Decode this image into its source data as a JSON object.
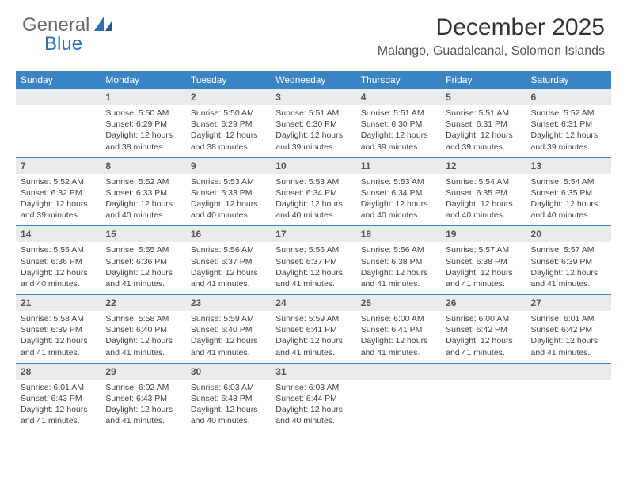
{
  "logo": {
    "text_grey": "General",
    "text_blue": "Blue"
  },
  "header": {
    "title": "December 2025",
    "location": "Malango, Guadalcanal, Solomon Islands"
  },
  "colors": {
    "header_bg": "#3b84c4",
    "header_text": "#ffffff",
    "daynum_bg": "#e9ebec",
    "cell_border": "#3b84c4",
    "title_color": "#333333",
    "body_text": "#444444"
  },
  "weekdays": [
    "Sunday",
    "Monday",
    "Tuesday",
    "Wednesday",
    "Thursday",
    "Friday",
    "Saturday"
  ],
  "weeks": [
    [
      {
        "n": "",
        "lines": []
      },
      {
        "n": "1",
        "lines": [
          "Sunrise: 5:50 AM",
          "Sunset: 6:29 PM",
          "Daylight: 12 hours",
          "and 38 minutes."
        ]
      },
      {
        "n": "2",
        "lines": [
          "Sunrise: 5:50 AM",
          "Sunset: 6:29 PM",
          "Daylight: 12 hours",
          "and 38 minutes."
        ]
      },
      {
        "n": "3",
        "lines": [
          "Sunrise: 5:51 AM",
          "Sunset: 6:30 PM",
          "Daylight: 12 hours",
          "and 39 minutes."
        ]
      },
      {
        "n": "4",
        "lines": [
          "Sunrise: 5:51 AM",
          "Sunset: 6:30 PM",
          "Daylight: 12 hours",
          "and 39 minutes."
        ]
      },
      {
        "n": "5",
        "lines": [
          "Sunrise: 5:51 AM",
          "Sunset: 6:31 PM",
          "Daylight: 12 hours",
          "and 39 minutes."
        ]
      },
      {
        "n": "6",
        "lines": [
          "Sunrise: 5:52 AM",
          "Sunset: 6:31 PM",
          "Daylight: 12 hours",
          "and 39 minutes."
        ]
      }
    ],
    [
      {
        "n": "7",
        "lines": [
          "Sunrise: 5:52 AM",
          "Sunset: 6:32 PM",
          "Daylight: 12 hours",
          "and 39 minutes."
        ]
      },
      {
        "n": "8",
        "lines": [
          "Sunrise: 5:52 AM",
          "Sunset: 6:33 PM",
          "Daylight: 12 hours",
          "and 40 minutes."
        ]
      },
      {
        "n": "9",
        "lines": [
          "Sunrise: 5:53 AM",
          "Sunset: 6:33 PM",
          "Daylight: 12 hours",
          "and 40 minutes."
        ]
      },
      {
        "n": "10",
        "lines": [
          "Sunrise: 5:53 AM",
          "Sunset: 6:34 PM",
          "Daylight: 12 hours",
          "and 40 minutes."
        ]
      },
      {
        "n": "11",
        "lines": [
          "Sunrise: 5:53 AM",
          "Sunset: 6:34 PM",
          "Daylight: 12 hours",
          "and 40 minutes."
        ]
      },
      {
        "n": "12",
        "lines": [
          "Sunrise: 5:54 AM",
          "Sunset: 6:35 PM",
          "Daylight: 12 hours",
          "and 40 minutes."
        ]
      },
      {
        "n": "13",
        "lines": [
          "Sunrise: 5:54 AM",
          "Sunset: 6:35 PM",
          "Daylight: 12 hours",
          "and 40 minutes."
        ]
      }
    ],
    [
      {
        "n": "14",
        "lines": [
          "Sunrise: 5:55 AM",
          "Sunset: 6:36 PM",
          "Daylight: 12 hours",
          "and 40 minutes."
        ]
      },
      {
        "n": "15",
        "lines": [
          "Sunrise: 5:55 AM",
          "Sunset: 6:36 PM",
          "Daylight: 12 hours",
          "and 41 minutes."
        ]
      },
      {
        "n": "16",
        "lines": [
          "Sunrise: 5:56 AM",
          "Sunset: 6:37 PM",
          "Daylight: 12 hours",
          "and 41 minutes."
        ]
      },
      {
        "n": "17",
        "lines": [
          "Sunrise: 5:56 AM",
          "Sunset: 6:37 PM",
          "Daylight: 12 hours",
          "and 41 minutes."
        ]
      },
      {
        "n": "18",
        "lines": [
          "Sunrise: 5:56 AM",
          "Sunset: 6:38 PM",
          "Daylight: 12 hours",
          "and 41 minutes."
        ]
      },
      {
        "n": "19",
        "lines": [
          "Sunrise: 5:57 AM",
          "Sunset: 6:38 PM",
          "Daylight: 12 hours",
          "and 41 minutes."
        ]
      },
      {
        "n": "20",
        "lines": [
          "Sunrise: 5:57 AM",
          "Sunset: 6:39 PM",
          "Daylight: 12 hours",
          "and 41 minutes."
        ]
      }
    ],
    [
      {
        "n": "21",
        "lines": [
          "Sunrise: 5:58 AM",
          "Sunset: 6:39 PM",
          "Daylight: 12 hours",
          "and 41 minutes."
        ]
      },
      {
        "n": "22",
        "lines": [
          "Sunrise: 5:58 AM",
          "Sunset: 6:40 PM",
          "Daylight: 12 hours",
          "and 41 minutes."
        ]
      },
      {
        "n": "23",
        "lines": [
          "Sunrise: 5:59 AM",
          "Sunset: 6:40 PM",
          "Daylight: 12 hours",
          "and 41 minutes."
        ]
      },
      {
        "n": "24",
        "lines": [
          "Sunrise: 5:59 AM",
          "Sunset: 6:41 PM",
          "Daylight: 12 hours",
          "and 41 minutes."
        ]
      },
      {
        "n": "25",
        "lines": [
          "Sunrise: 6:00 AM",
          "Sunset: 6:41 PM",
          "Daylight: 12 hours",
          "and 41 minutes."
        ]
      },
      {
        "n": "26",
        "lines": [
          "Sunrise: 6:00 AM",
          "Sunset: 6:42 PM",
          "Daylight: 12 hours",
          "and 41 minutes."
        ]
      },
      {
        "n": "27",
        "lines": [
          "Sunrise: 6:01 AM",
          "Sunset: 6:42 PM",
          "Daylight: 12 hours",
          "and 41 minutes."
        ]
      }
    ],
    [
      {
        "n": "28",
        "lines": [
          "Sunrise: 6:01 AM",
          "Sunset: 6:43 PM",
          "Daylight: 12 hours",
          "and 41 minutes."
        ]
      },
      {
        "n": "29",
        "lines": [
          "Sunrise: 6:02 AM",
          "Sunset: 6:43 PM",
          "Daylight: 12 hours",
          "and 41 minutes."
        ]
      },
      {
        "n": "30",
        "lines": [
          "Sunrise: 6:03 AM",
          "Sunset: 6:43 PM",
          "Daylight: 12 hours",
          "and 40 minutes."
        ]
      },
      {
        "n": "31",
        "lines": [
          "Sunrise: 6:03 AM",
          "Sunset: 6:44 PM",
          "Daylight: 12 hours",
          "and 40 minutes."
        ]
      },
      {
        "n": "",
        "lines": []
      },
      {
        "n": "",
        "lines": []
      },
      {
        "n": "",
        "lines": []
      }
    ]
  ]
}
